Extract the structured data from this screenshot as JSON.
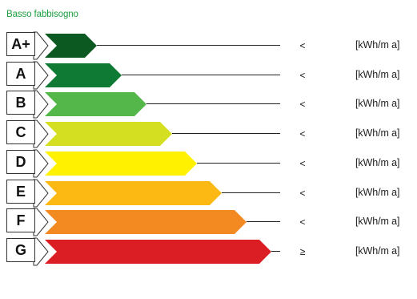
{
  "header": {
    "title": "Basso fabbisogno",
    "title_color": "#1b9e3e"
  },
  "classes": [
    {
      "label": "A+",
      "operator": "<",
      "unit": "[kWh/m a]",
      "color": "#0c5a22"
    },
    {
      "label": "A",
      "operator": "<",
      "unit": "[kWh/m a]",
      "color": "#0f7a33"
    },
    {
      "label": "B",
      "operator": "<",
      "unit": "[kWh/m a]",
      "color": "#53b849"
    },
    {
      "label": "C",
      "operator": "<",
      "unit": "[kWh/m a]",
      "color": "#d5df22"
    },
    {
      "label": "D",
      "operator": "<",
      "unit": "[kWh/m a]",
      "color": "#fff100"
    },
    {
      "label": "E",
      "operator": "<",
      "unit": "[kWh/m a]",
      "color": "#fcb813"
    },
    {
      "label": "F",
      "operator": "<",
      "unit": "[kWh/m a]",
      "color": "#f28a21"
    },
    {
      "label": "G",
      "operator": "≥",
      "unit": "[kWh/m a]",
      "color": "#db1d24"
    }
  ]
}
